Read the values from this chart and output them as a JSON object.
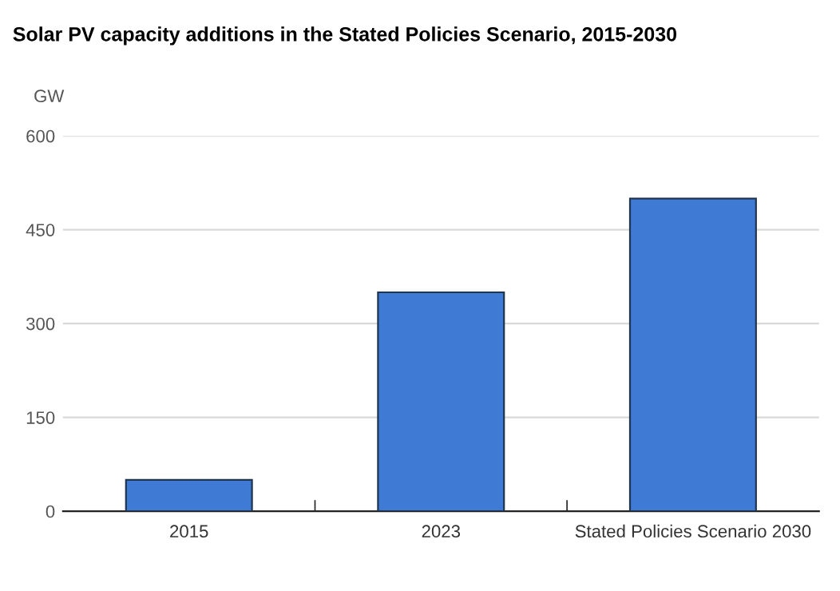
{
  "chart_data": {
    "type": "bar",
    "title": "Solar PV capacity additions in the Stated Policies Scenario, 2015-2030",
    "ylabel": "GW",
    "categories": [
      "2015",
      "2023",
      "Stated Policies Scenario 2030"
    ],
    "values": [
      50,
      350,
      500
    ],
    "color": "#3f7bd4",
    "ylim": [
      0,
      600
    ],
    "yticks": [
      0,
      150,
      300,
      450,
      600
    ],
    "grid": "y"
  }
}
